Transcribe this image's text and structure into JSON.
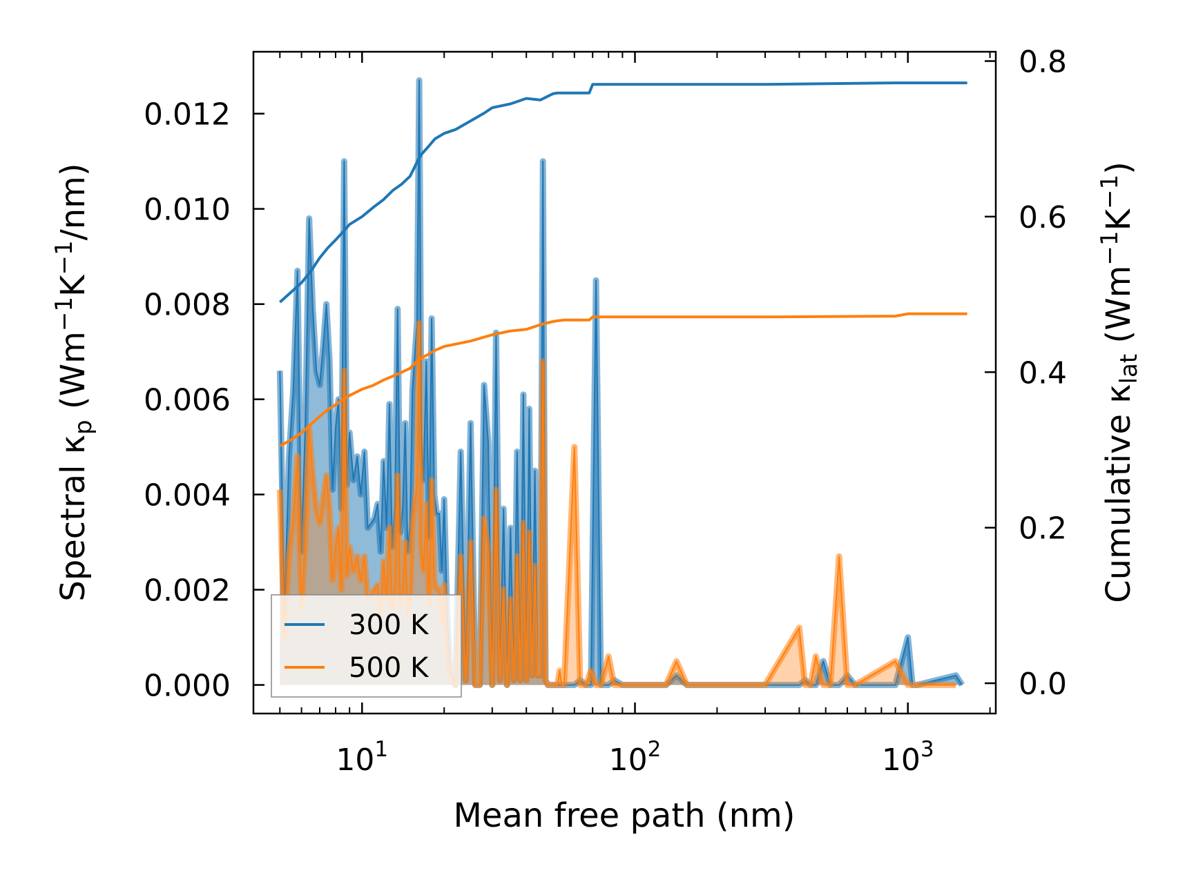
{
  "chart_data": {
    "type": "line",
    "subtype": "spectral + cumulative thermal conductivity",
    "xscale": "log",
    "xlim": [
      4,
      2100
    ],
    "xlabel": "Mean free path (nm)",
    "x_tick_base": "10",
    "x_tick_exponents": [
      "1",
      "2",
      "3"
    ],
    "x_tick_values": [
      10,
      100,
      1000
    ],
    "left_axis": {
      "label_parts": [
        "Spectral κ",
        "p",
        " (Wm",
        "−1",
        "K",
        "−1",
        "/nm)"
      ],
      "ylim": [
        -0.0006,
        0.0133
      ],
      "ticks": [
        0.0,
        0.002,
        0.004,
        0.006,
        0.008,
        0.01,
        0.012
      ],
      "tick_labels": [
        "0.000",
        "0.002",
        "0.004",
        "0.006",
        "0.008",
        "0.010",
        "0.012"
      ]
    },
    "right_axis": {
      "label_parts": [
        "Cumulative κ",
        "lat",
        " (Wm",
        "−1",
        "K",
        "−1",
        ")"
      ],
      "ylim": [
        -0.039,
        0.812
      ],
      "ticks": [
        0.0,
        0.2,
        0.4,
        0.6,
        0.8
      ],
      "tick_labels": [
        "0.0",
        "0.2",
        "0.4",
        "0.6",
        "0.8"
      ]
    },
    "legend": {
      "placement": "lower-left",
      "entries": [
        {
          "label": "300 K",
          "color": "#1f77b4"
        },
        {
          "label": "500 K",
          "color": "#ff7f0e"
        }
      ]
    },
    "colors": {
      "c300": "#1f77b4",
      "c500": "#ff7f0e"
    },
    "spectral": {
      "x": [
        5.0,
        5.2,
        5.4,
        5.6,
        5.8,
        6.0,
        6.2,
        6.4,
        6.6,
        6.8,
        7.0,
        7.2,
        7.4,
        7.6,
        7.8,
        8.0,
        8.2,
        8.4,
        8.6,
        8.8,
        9.0,
        9.3,
        9.6,
        9.9,
        10.2,
        10.5,
        10.8,
        11.1,
        11.4,
        11.7,
        12.0,
        12.3,
        12.6,
        12.9,
        13.2,
        13.5,
        13.8,
        14.1,
        14.4,
        14.7,
        15.0,
        15.3,
        15.6,
        15.9,
        16.2,
        16.5,
        16.8,
        17.2,
        17.6,
        18.0,
        18.4,
        18.8,
        19.2,
        19.6,
        20.0,
        20.5,
        21.0,
        21.5,
        22.0,
        23.0,
        24.0,
        25.0,
        26.0,
        27.0,
        28.0,
        29.0,
        30.0,
        31.0,
        32.0,
        33.0,
        34.0,
        35.0,
        36.0,
        37.0,
        38.0,
        39.0,
        40.0,
        41.0,
        42.0,
        43.0,
        44.0,
        45.0,
        46.0,
        47.0,
        48.0,
        49.0,
        50.0,
        51.0,
        52.0,
        53.0,
        54.0,
        55.0,
        60.0,
        63.0,
        66.0,
        69.0,
        72.0,
        75.0,
        80.0,
        84.0,
        90.0,
        130.0,
        142.0,
        155.0,
        300.0,
        400.0,
        420.0,
        440.0,
        460.0,
        490.0,
        520.0,
        560.0,
        600.0,
        640.0,
        900.0,
        1000.0,
        1040.0,
        1080.0,
        1500.0,
        1580.0,
        1650.0
      ],
      "series": [
        {
          "name": "300 K",
          "values": [
            0.0066,
            0.0015,
            0.0048,
            0.0062,
            0.0087,
            0.0028,
            0.0055,
            0.0098,
            0.0079,
            0.0066,
            0.0063,
            0.0071,
            0.008,
            0.0068,
            0.0041,
            0.0054,
            0.006,
            0.0037,
            0.011,
            0.0042,
            0.0053,
            0.0043,
            0.0048,
            0.004,
            0.0049,
            0.0033,
            0.0034,
            0.0035,
            0.0038,
            0.0028,
            0.0047,
            0.0033,
            0.0059,
            0.0029,
            0.0038,
            0.0079,
            0.0032,
            0.0037,
            0.0055,
            0.0028,
            0.0034,
            0.0062,
            0.0069,
            0.0076,
            0.0127,
            0.0052,
            0.0043,
            0.0068,
            0.0031,
            0.0077,
            0.004,
            0.0036,
            0.0036,
            0.0024,
            0.0039,
            0.0015,
            0.0003,
            0.0002,
            0.0,
            0.0049,
            0.0001,
            0.0055,
            0.0,
            0.0,
            0.0063,
            0.0051,
            0.0,
            0.0074,
            0.0001,
            0.0037,
            0.0,
            0.0033,
            0.0001,
            0.0049,
            0.0001,
            0.0061,
            0.0001,
            0.0058,
            0.0002,
            0.0045,
            0.0002,
            0.0002,
            0.011,
            0.0001,
            0.0,
            0.0,
            0.0,
            0.0,
            0.0,
            0.0,
            0.0,
            0.0,
            0.0,
            0.0001,
            0.0,
            0.0,
            0.0085,
            0.0,
            0.0,
            0.0001,
            0.0,
            0.0,
            0.0002,
            0.0,
            0.0,
            0.0,
            0.0001,
            0.0,
            0.0,
            0.0005,
            0.0,
            0.0,
            0.0002,
            0.0,
            0.0,
            0.001,
            0.0,
            0.0,
            0.0002,
            0.0
          ]
        },
        {
          "name": "500 K",
          "values": [
            0.0041,
            0.001,
            0.0027,
            0.0035,
            0.0048,
            0.0016,
            0.0031,
            0.0054,
            0.0044,
            0.0037,
            0.0034,
            0.0039,
            0.0044,
            0.0037,
            0.0022,
            0.0029,
            0.0033,
            0.002,
            0.0066,
            0.0023,
            0.0029,
            0.0024,
            0.0027,
            0.0022,
            0.0027,
            0.0018,
            0.0019,
            0.002,
            0.0021,
            0.0015,
            0.0026,
            0.0018,
            0.0033,
            0.0016,
            0.0021,
            0.0044,
            0.0017,
            0.002,
            0.003,
            0.0015,
            0.0019,
            0.0034,
            0.0038,
            0.0042,
            0.0076,
            0.0029,
            0.0024,
            0.0038,
            0.0017,
            0.0043,
            0.0022,
            0.002,
            0.002,
            0.0013,
            0.0021,
            0.0008,
            0.0002,
            0.0001,
            0.0,
            0.0027,
            0.0001,
            0.003,
            0.0,
            0.0,
            0.0035,
            0.0028,
            0.0,
            0.0041,
            0.0001,
            0.002,
            0.0,
            0.0018,
            0.0001,
            0.0027,
            0.0001,
            0.0034,
            0.0001,
            0.0032,
            0.0002,
            0.0025,
            0.0002,
            0.0002,
            0.0068,
            0.0001,
            0.0,
            0.0,
            0.0,
            0.0,
            0.0,
            0.0003,
            0.0,
            0.0,
            0.005,
            0.0,
            0.0,
            0.0003,
            0.0,
            0.0,
            0.0006,
            0.0,
            0.0,
            0.0,
            0.0005,
            0.0,
            0.0,
            0.0012,
            0.0,
            0.0,
            0.0006,
            0.0,
            0.0,
            0.0027,
            0.0,
            0.0,
            0.0005,
            0.0,
            0.0,
            0.0,
            0.0
          ]
        }
      ]
    },
    "cumulative": {
      "x": [
        5.0,
        5.5,
        6.0,
        6.5,
        7.0,
        7.5,
        8.0,
        8.5,
        9.0,
        10.0,
        11.0,
        12.0,
        13.0,
        14.0,
        15.0,
        15.5,
        16.0,
        16.5,
        17.5,
        18.5,
        20.0,
        22.0,
        25.0,
        28.0,
        30.0,
        35.0,
        40.0,
        45.0,
        50.0,
        52.0,
        55.0,
        68.0,
        70.0,
        100.0,
        300.0,
        900.0,
        1000.0,
        1650.0
      ],
      "series": [
        {
          "name": "300 K",
          "values": [
            0.49,
            0.503,
            0.515,
            0.53,
            0.547,
            0.56,
            0.57,
            0.58,
            0.59,
            0.6,
            0.612,
            0.622,
            0.634,
            0.642,
            0.652,
            0.662,
            0.672,
            0.68,
            0.69,
            0.7,
            0.707,
            0.712,
            0.723,
            0.733,
            0.74,
            0.745,
            0.752,
            0.75,
            0.758,
            0.759,
            0.759,
            0.759,
            0.77,
            0.77,
            0.77,
            0.772,
            0.772,
            0.772
          ]
        },
        {
          "name": "500 K",
          "values": [
            0.305,
            0.313,
            0.322,
            0.333,
            0.343,
            0.352,
            0.358,
            0.365,
            0.37,
            0.378,
            0.383,
            0.39,
            0.395,
            0.4,
            0.405,
            0.41,
            0.415,
            0.418,
            0.423,
            0.428,
            0.433,
            0.436,
            0.44,
            0.445,
            0.448,
            0.453,
            0.455,
            0.461,
            0.465,
            0.466,
            0.467,
            0.467,
            0.471,
            0.471,
            0.471,
            0.472,
            0.475,
            0.475
          ]
        }
      ]
    }
  }
}
